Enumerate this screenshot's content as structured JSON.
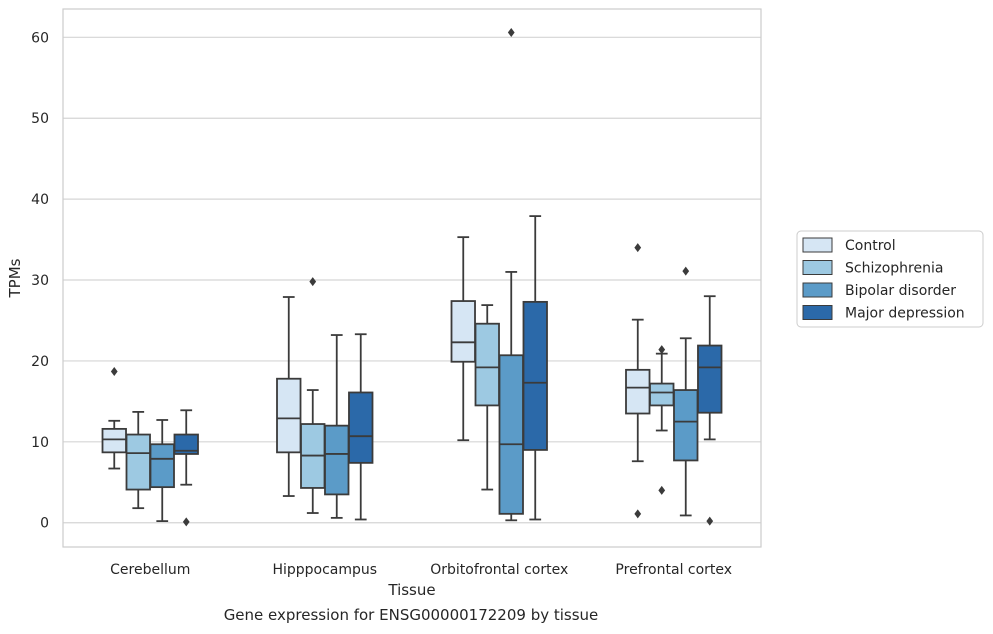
{
  "caption": "Gene expression for ENSG00000172209 by tissue",
  "chart_data": {
    "type": "box",
    "title": "",
    "xlabel": "Tissue",
    "ylabel": "TPMs",
    "ylim": [
      -3,
      63.5
    ],
    "yticks": [
      0,
      10,
      20,
      30,
      40,
      50,
      60
    ],
    "grid": true,
    "legend_position": "right",
    "categories": [
      "Cerebellum",
      "Hipppocampus",
      "Orbitofrontal cortex",
      "Prefrontal cortex"
    ],
    "series": [
      {
        "name": "Control",
        "color": "#d6e6f4",
        "boxes": [
          {
            "whisker_low": 6.7,
            "q1": 8.7,
            "median": 10.3,
            "q3": 11.6,
            "whisker_high": 12.6,
            "outliers": [
              18.7
            ]
          },
          {
            "whisker_low": 3.3,
            "q1": 8.7,
            "median": 12.9,
            "q3": 17.8,
            "whisker_high": 27.9,
            "outliers": []
          },
          {
            "whisker_low": 10.2,
            "q1": 19.9,
            "median": 22.3,
            "q3": 27.4,
            "whisker_high": 35.3,
            "outliers": []
          },
          {
            "whisker_low": 7.6,
            "q1": 13.5,
            "median": 16.7,
            "q3": 18.9,
            "whisker_high": 25.1,
            "outliers": [
              34.0,
              1.1
            ]
          }
        ]
      },
      {
        "name": "Schizophrenia",
        "color": "#9dc9e2",
        "boxes": [
          {
            "whisker_low": 1.8,
            "q1": 4.1,
            "median": 8.6,
            "q3": 10.9,
            "whisker_high": 13.7,
            "outliers": []
          },
          {
            "whisker_low": 1.2,
            "q1": 4.3,
            "median": 8.3,
            "q3": 12.2,
            "whisker_high": 16.4,
            "outliers": [
              29.8
            ]
          },
          {
            "whisker_low": 4.1,
            "q1": 14.5,
            "median": 19.2,
            "q3": 24.6,
            "whisker_high": 26.9,
            "outliers": []
          },
          {
            "whisker_low": 11.4,
            "q1": 14.5,
            "median": 16.1,
            "q3": 17.2,
            "whisker_high": 20.9,
            "outliers": [
              21.4,
              4.0
            ]
          }
        ]
      },
      {
        "name": "Bipolar disorder",
        "color": "#5b9bc8",
        "boxes": [
          {
            "whisker_low": 0.2,
            "q1": 4.4,
            "median": 7.9,
            "q3": 9.7,
            "whisker_high": 12.7,
            "outliers": []
          },
          {
            "whisker_low": 0.6,
            "q1": 3.5,
            "median": 8.5,
            "q3": 12.0,
            "whisker_high": 23.2,
            "outliers": []
          },
          {
            "whisker_low": 0.3,
            "q1": 1.1,
            "median": 9.7,
            "q3": 20.7,
            "whisker_high": 31.0,
            "outliers": [
              60.6
            ]
          },
          {
            "whisker_low": 0.9,
            "q1": 7.7,
            "median": 12.5,
            "q3": 16.4,
            "whisker_high": 22.8,
            "outliers": [
              31.1
            ]
          }
        ]
      },
      {
        "name": "Major depression",
        "color": "#2b69a9",
        "boxes": [
          {
            "whisker_low": 4.7,
            "q1": 8.5,
            "median": 8.9,
            "q3": 10.9,
            "whisker_high": 13.9,
            "outliers": [
              0.1
            ]
          },
          {
            "whisker_low": 0.4,
            "q1": 7.4,
            "median": 10.7,
            "q3": 16.1,
            "whisker_high": 23.3,
            "outliers": []
          },
          {
            "whisker_low": 0.4,
            "q1": 9.0,
            "median": 17.3,
            "q3": 27.3,
            "whisker_high": 37.9,
            "outliers": []
          },
          {
            "whisker_low": 10.3,
            "q1": 13.6,
            "median": 19.2,
            "q3": 21.9,
            "whisker_high": 28.0,
            "outliers": [
              0.2
            ]
          }
        ]
      }
    ]
  }
}
